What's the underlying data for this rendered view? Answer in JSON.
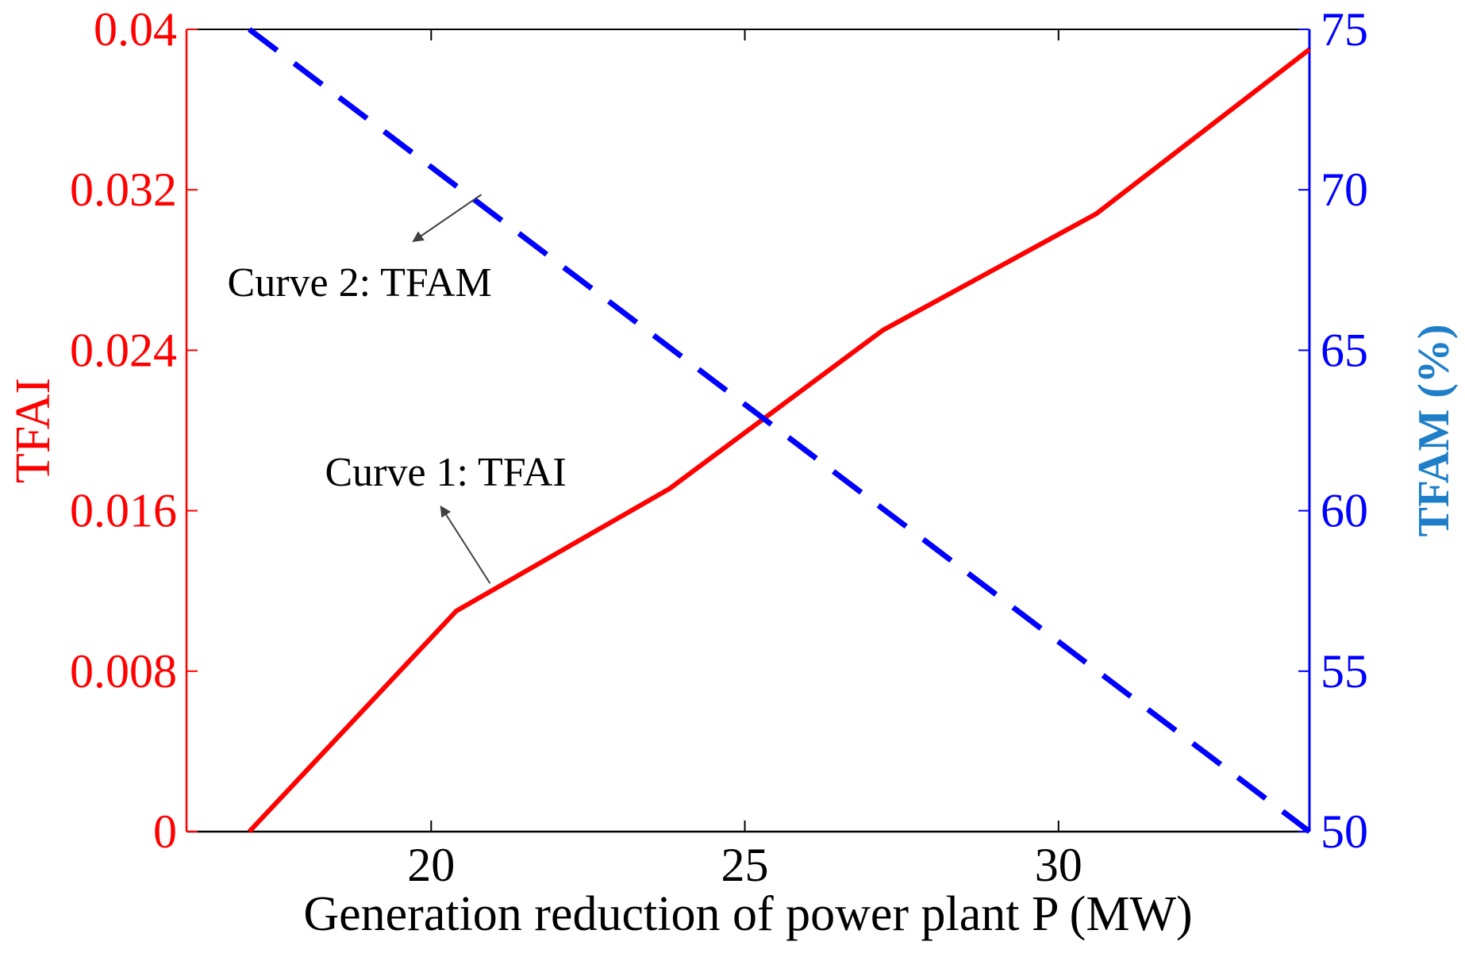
{
  "chart_data": {
    "type": "line",
    "title": "",
    "xlabel": "Generation reduction of power plant P (MW)",
    "ylabel_left": "TFAI",
    "ylabel_right": "TFAM (%)",
    "xlim": [
      16.1,
      34.0
    ],
    "ylim_left": [
      0,
      0.04
    ],
    "ylim_right": [
      50,
      75
    ],
    "x_ticks": [
      "20",
      "25",
      "30"
    ],
    "x_tick_values": [
      20,
      25,
      30
    ],
    "y_left_ticks": [
      "0",
      "0.008",
      "0.016",
      "0.024",
      "0.032",
      "0.04"
    ],
    "y_left_tick_values": [
      0,
      0.008,
      0.016,
      0.024,
      0.032,
      0.04
    ],
    "y_right_ticks": [
      "50",
      "55",
      "60",
      "65",
      "70",
      "75"
    ],
    "y_right_tick_values": [
      50,
      55,
      60,
      65,
      70,
      75
    ],
    "grid": false,
    "series": [
      {
        "name": "Curve 1: TFAI",
        "axis": "left",
        "style": "solid",
        "color": "#ff0000",
        "x": [
          17.1,
          20.4,
          23.8,
          27.2,
          30.6,
          34.0
        ],
        "y": [
          0.0,
          0.011,
          0.0171,
          0.025,
          0.0308,
          0.039
        ]
      },
      {
        "name": "Curve 2: TFAM",
        "axis": "right",
        "style": "dashed",
        "color": "#0000ff",
        "x": [
          17.1,
          34.0
        ],
        "y": [
          75,
          50
        ]
      }
    ],
    "annotations": [
      {
        "text": "Curve 2: TFAM",
        "points_to": "Curve 2: TFAM",
        "x": 20.8,
        "y_right": 69.9
      },
      {
        "text": "Curve 1: TFAI",
        "points_to": "Curve 1: TFAI",
        "x": 20.9,
        "y_left": 0.0123
      }
    ],
    "colors": {
      "left_axis": "#ff0000",
      "right_axis": "#0000ff",
      "right_label": "#1e7fc8",
      "text": "#000000",
      "arrow": "#404040"
    }
  }
}
